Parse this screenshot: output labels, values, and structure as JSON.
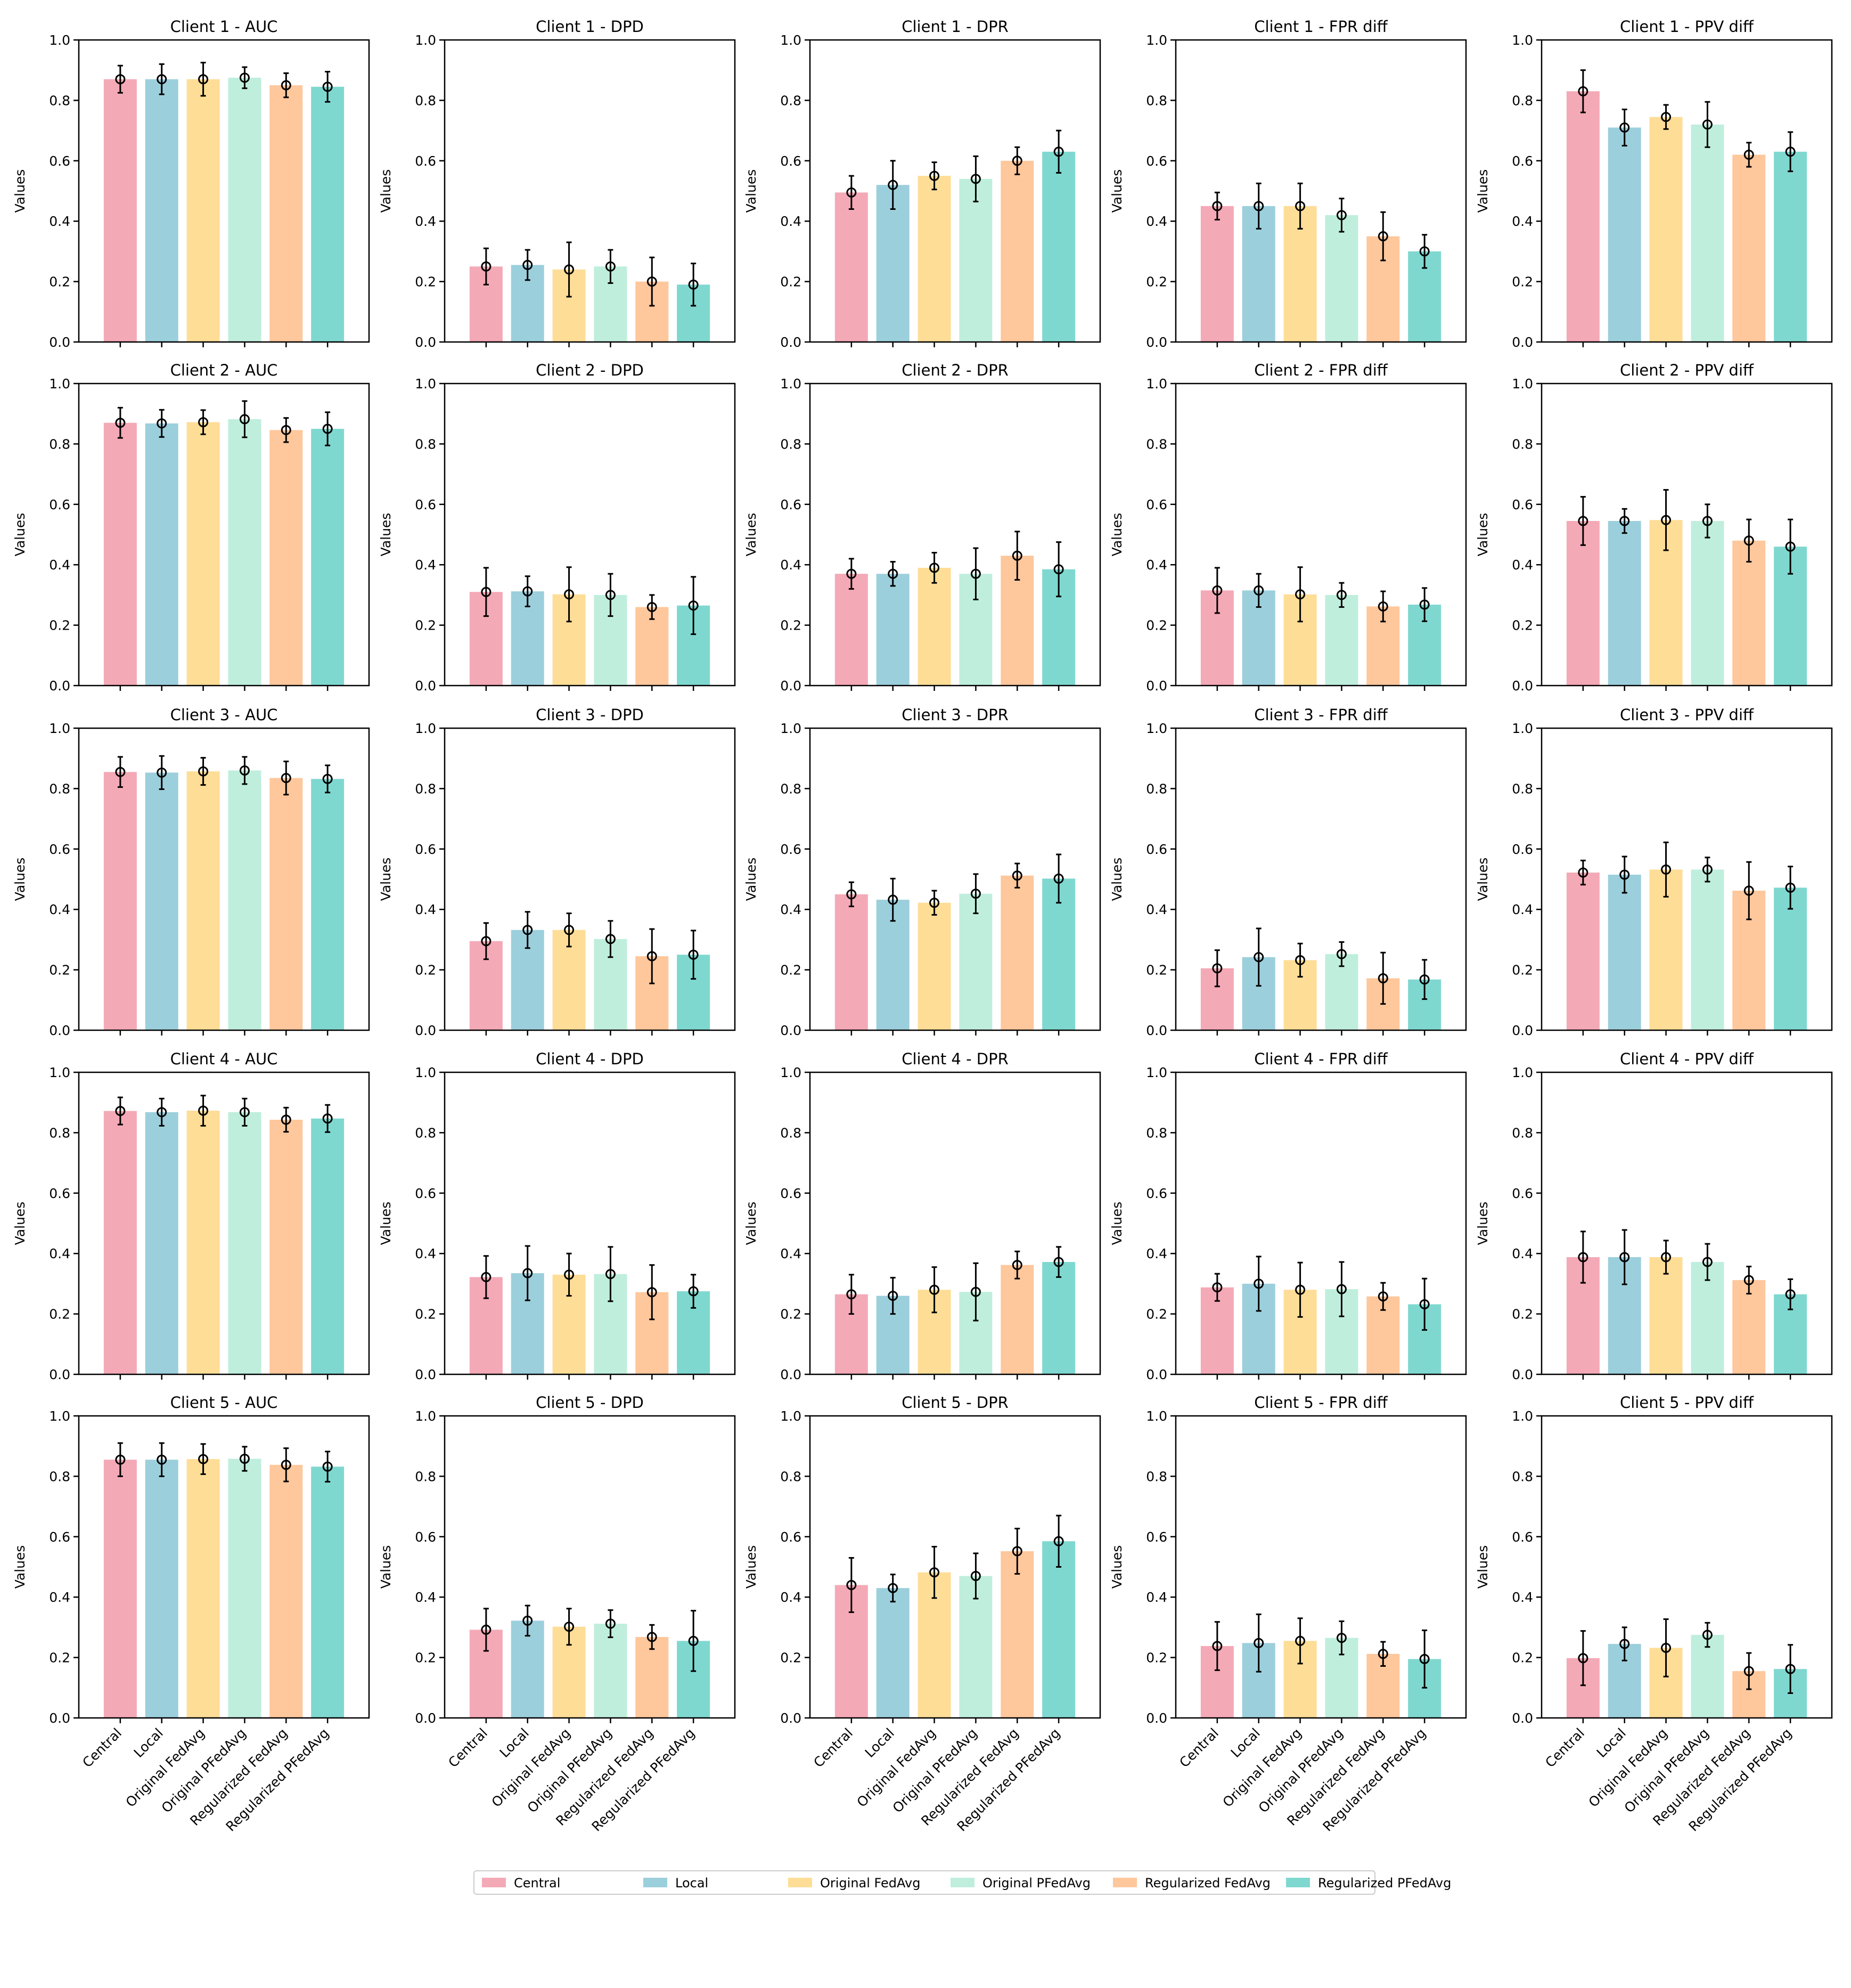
{
  "figure": {
    "y_axis_label": "Values",
    "ylim": [
      0,
      1
    ],
    "yticks": [
      "0.0",
      "0.2",
      "0.4",
      "0.6",
      "0.8",
      "1.0"
    ],
    "grid": false,
    "legend_position": "bottom-center"
  },
  "methods": [
    {
      "name": "Central",
      "color": "#f4a9b6"
    },
    {
      "name": "Local",
      "color": "#9ccfdc"
    },
    {
      "name": "Original FedAvg",
      "color": "#fedd97"
    },
    {
      "name": "Original PFedAvg",
      "color": "#bfeedd"
    },
    {
      "name": "Regularized FedAvg",
      "color": "#fec79c"
    },
    {
      "name": "Regularized PFedAvg",
      "color": "#7fd8d0"
    }
  ],
  "chart_data": [
    {
      "title": "Client 1 - AUC",
      "type": "bar",
      "ylabel": "Values",
      "ylim": [
        0,
        1
      ],
      "categories": [
        "Central",
        "Local",
        "Original FedAvg",
        "Original PFedAvg",
        "Regularized FedAvg",
        "Regularized PFedAvg"
      ],
      "values": [
        0.87,
        0.87,
        0.87,
        0.875,
        0.85,
        0.845
      ],
      "errors": [
        0.045,
        0.05,
        0.055,
        0.035,
        0.04,
        0.05
      ]
    },
    {
      "title": "Client 1 - DPD",
      "type": "bar",
      "ylabel": "Values",
      "ylim": [
        0,
        1
      ],
      "categories": [
        "Central",
        "Local",
        "Original FedAvg",
        "Original PFedAvg",
        "Regularized FedAvg",
        "Regularized PFedAvg"
      ],
      "values": [
        0.25,
        0.255,
        0.24,
        0.25,
        0.2,
        0.19
      ],
      "errors": [
        0.06,
        0.05,
        0.09,
        0.055,
        0.08,
        0.07
      ]
    },
    {
      "title": "Client 1 - DPR",
      "type": "bar",
      "ylabel": "Values",
      "ylim": [
        0,
        1
      ],
      "categories": [
        "Central",
        "Local",
        "Original FedAvg",
        "Original PFedAvg",
        "Regularized FedAvg",
        "Regularized PFedAvg"
      ],
      "values": [
        0.495,
        0.52,
        0.55,
        0.54,
        0.6,
        0.63
      ],
      "errors": [
        0.055,
        0.08,
        0.045,
        0.075,
        0.045,
        0.07
      ]
    },
    {
      "title": "Client 1 - FPR diff",
      "type": "bar",
      "ylabel": "Values",
      "ylim": [
        0,
        1
      ],
      "categories": [
        "Central",
        "Local",
        "Original FedAvg",
        "Original PFedAvg",
        "Regularized FedAvg",
        "Regularized PFedAvg"
      ],
      "values": [
        0.45,
        0.45,
        0.45,
        0.42,
        0.35,
        0.3
      ],
      "errors": [
        0.045,
        0.075,
        0.075,
        0.055,
        0.08,
        0.055
      ]
    },
    {
      "title": "Client 1 - PPV diff",
      "type": "bar",
      "ylabel": "Values",
      "ylim": [
        0,
        1
      ],
      "categories": [
        "Central",
        "Local",
        "Original FedAvg",
        "Original PFedAvg",
        "Regularized FedAvg",
        "Regularized PFedAvg"
      ],
      "values": [
        0.83,
        0.71,
        0.745,
        0.72,
        0.62,
        0.63
      ],
      "errors": [
        0.07,
        0.06,
        0.04,
        0.075,
        0.04,
        0.065
      ]
    },
    {
      "title": "Client 2 - AUC",
      "type": "bar",
      "ylabel": "Values",
      "ylim": [
        0,
        1
      ],
      "categories": [
        "Central",
        "Local",
        "Original FedAvg",
        "Original PFedAvg",
        "Regularized FedAvg",
        "Regularized PFedAvg"
      ],
      "values": [
        0.87,
        0.868,
        0.872,
        0.882,
        0.846,
        0.85
      ],
      "errors": [
        0.05,
        0.045,
        0.04,
        0.06,
        0.04,
        0.055
      ]
    },
    {
      "title": "Client 2 - DPD",
      "type": "bar",
      "ylabel": "Values",
      "ylim": [
        0,
        1
      ],
      "categories": [
        "Central",
        "Local",
        "Original FedAvg",
        "Original PFedAvg",
        "Regularized FedAvg",
        "Regularized PFedAvg"
      ],
      "values": [
        0.31,
        0.312,
        0.302,
        0.3,
        0.26,
        0.265
      ],
      "errors": [
        0.08,
        0.05,
        0.09,
        0.07,
        0.04,
        0.095
      ]
    },
    {
      "title": "Client 2 - DPR",
      "type": "bar",
      "ylabel": "Values",
      "ylim": [
        0,
        1
      ],
      "categories": [
        "Central",
        "Local",
        "Original FedAvg",
        "Original PFedAvg",
        "Regularized FedAvg",
        "Regularized PFedAvg"
      ],
      "values": [
        0.37,
        0.37,
        0.39,
        0.37,
        0.43,
        0.385
      ],
      "errors": [
        0.05,
        0.04,
        0.05,
        0.085,
        0.08,
        0.09
      ]
    },
    {
      "title": "Client 2 - FPR diff",
      "type": "bar",
      "ylabel": "Values",
      "ylim": [
        0,
        1
      ],
      "categories": [
        "Central",
        "Local",
        "Original FedAvg",
        "Original PFedAvg",
        "Regularized FedAvg",
        "Regularized PFedAvg"
      ],
      "values": [
        0.315,
        0.315,
        0.302,
        0.3,
        0.262,
        0.268
      ],
      "errors": [
        0.075,
        0.055,
        0.09,
        0.04,
        0.05,
        0.055
      ]
    },
    {
      "title": "Client 2 - PPV diff",
      "type": "bar",
      "ylabel": "Values",
      "ylim": [
        0,
        1
      ],
      "categories": [
        "Central",
        "Local",
        "Original FedAvg",
        "Original PFedAvg",
        "Regularized FedAvg",
        "Regularized PFedAvg"
      ],
      "values": [
        0.545,
        0.545,
        0.548,
        0.545,
        0.48,
        0.46
      ],
      "errors": [
        0.08,
        0.04,
        0.1,
        0.055,
        0.07,
        0.09
      ]
    },
    {
      "title": "Client 3 - AUC",
      "type": "bar",
      "ylabel": "Values",
      "ylim": [
        0,
        1
      ],
      "categories": [
        "Central",
        "Local",
        "Original FedAvg",
        "Original PFedAvg",
        "Regularized FedAvg",
        "Regularized PFedAvg"
      ],
      "values": [
        0.855,
        0.853,
        0.857,
        0.86,
        0.835,
        0.832
      ],
      "errors": [
        0.05,
        0.055,
        0.045,
        0.045,
        0.055,
        0.045
      ]
    },
    {
      "title": "Client 3 - DPD",
      "type": "bar",
      "ylabel": "Values",
      "ylim": [
        0,
        1
      ],
      "categories": [
        "Central",
        "Local",
        "Original FedAvg",
        "Original PFedAvg",
        "Regularized FedAvg",
        "Regularized PFedAvg"
      ],
      "values": [
        0.295,
        0.332,
        0.332,
        0.302,
        0.245,
        0.25
      ],
      "errors": [
        0.06,
        0.06,
        0.055,
        0.06,
        0.09,
        0.08
      ]
    },
    {
      "title": "Client 3 - DPR",
      "type": "bar",
      "ylabel": "Values",
      "ylim": [
        0,
        1
      ],
      "categories": [
        "Central",
        "Local",
        "Original FedAvg",
        "Original PFedAvg",
        "Regularized FedAvg",
        "Regularized PFedAvg"
      ],
      "values": [
        0.45,
        0.432,
        0.422,
        0.452,
        0.512,
        0.502
      ],
      "errors": [
        0.04,
        0.07,
        0.04,
        0.065,
        0.04,
        0.08
      ]
    },
    {
      "title": "Client 3 - FPR diff",
      "type": "bar",
      "ylabel": "Values",
      "ylim": [
        0,
        1
      ],
      "categories": [
        "Central",
        "Local",
        "Original FedAvg",
        "Original PFedAvg",
        "Regularized FedAvg",
        "Regularized PFedAvg"
      ],
      "values": [
        0.205,
        0.242,
        0.232,
        0.252,
        0.172,
        0.168
      ],
      "errors": [
        0.06,
        0.095,
        0.055,
        0.04,
        0.085,
        0.065
      ]
    },
    {
      "title": "Client 3 - PPV diff",
      "type": "bar",
      "ylabel": "Values",
      "ylim": [
        0,
        1
      ],
      "categories": [
        "Central",
        "Local",
        "Original FedAvg",
        "Original PFedAvg",
        "Regularized FedAvg",
        "Regularized PFedAvg"
      ],
      "values": [
        0.522,
        0.515,
        0.532,
        0.532,
        0.462,
        0.472
      ],
      "errors": [
        0.04,
        0.06,
        0.09,
        0.04,
        0.095,
        0.07
      ]
    },
    {
      "title": "Client 4 - AUC",
      "type": "bar",
      "ylabel": "Values",
      "ylim": [
        0,
        1
      ],
      "categories": [
        "Central",
        "Local",
        "Original FedAvg",
        "Original PFedAvg",
        "Regularized FedAvg",
        "Regularized PFedAvg"
      ],
      "values": [
        0.872,
        0.868,
        0.873,
        0.868,
        0.843,
        0.847
      ],
      "errors": [
        0.045,
        0.045,
        0.05,
        0.045,
        0.04,
        0.045
      ]
    },
    {
      "title": "Client 4 - DPD",
      "type": "bar",
      "ylabel": "Values",
      "ylim": [
        0,
        1
      ],
      "categories": [
        "Central",
        "Local",
        "Original FedAvg",
        "Original PFedAvg",
        "Regularized FedAvg",
        "Regularized PFedAvg"
      ],
      "values": [
        0.322,
        0.335,
        0.33,
        0.332,
        0.272,
        0.275
      ],
      "errors": [
        0.07,
        0.09,
        0.07,
        0.09,
        0.09,
        0.055
      ]
    },
    {
      "title": "Client 4 - DPR",
      "type": "bar",
      "ylabel": "Values",
      "ylim": [
        0,
        1
      ],
      "categories": [
        "Central",
        "Local",
        "Original FedAvg",
        "Original PFedAvg",
        "Regularized FedAvg",
        "Regularized PFedAvg"
      ],
      "values": [
        0.265,
        0.26,
        0.28,
        0.273,
        0.362,
        0.372
      ],
      "errors": [
        0.065,
        0.06,
        0.075,
        0.095,
        0.045,
        0.05
      ]
    },
    {
      "title": "Client 4 - FPR diff",
      "type": "bar",
      "ylabel": "Values",
      "ylim": [
        0,
        1
      ],
      "categories": [
        "Central",
        "Local",
        "Original FedAvg",
        "Original PFedAvg",
        "Regularized FedAvg",
        "Regularized PFedAvg"
      ],
      "values": [
        0.288,
        0.3,
        0.28,
        0.282,
        0.258,
        0.232
      ],
      "errors": [
        0.045,
        0.09,
        0.09,
        0.09,
        0.045,
        0.085
      ]
    },
    {
      "title": "Client 4 - PPV diff",
      "type": "bar",
      "ylabel": "Values",
      "ylim": [
        0,
        1
      ],
      "categories": [
        "Central",
        "Local",
        "Original FedAvg",
        "Original PFedAvg",
        "Regularized FedAvg",
        "Regularized PFedAvg"
      ],
      "values": [
        0.388,
        0.388,
        0.388,
        0.372,
        0.312,
        0.265
      ],
      "errors": [
        0.085,
        0.09,
        0.055,
        0.06,
        0.045,
        0.05
      ]
    },
    {
      "title": "Client 5 - AUC",
      "type": "bar",
      "ylabel": "Values",
      "ylim": [
        0,
        1
      ],
      "categories": [
        "Central",
        "Local",
        "Original FedAvg",
        "Original PFedAvg",
        "Regularized FedAvg",
        "Regularized PFedAvg"
      ],
      "values": [
        0.855,
        0.855,
        0.857,
        0.858,
        0.838,
        0.832
      ],
      "errors": [
        0.055,
        0.055,
        0.05,
        0.04,
        0.055,
        0.05
      ]
    },
    {
      "title": "Client 5 - DPD",
      "type": "bar",
      "ylabel": "Values",
      "ylim": [
        0,
        1
      ],
      "categories": [
        "Central",
        "Local",
        "Original FedAvg",
        "Original PFedAvg",
        "Regularized FedAvg",
        "Regularized PFedAvg"
      ],
      "values": [
        0.292,
        0.322,
        0.302,
        0.312,
        0.268,
        0.255
      ],
      "errors": [
        0.07,
        0.05,
        0.06,
        0.045,
        0.04,
        0.1
      ]
    },
    {
      "title": "Client 5 - DPR",
      "type": "bar",
      "ylabel": "Values",
      "ylim": [
        0,
        1
      ],
      "categories": [
        "Central",
        "Local",
        "Original FedAvg",
        "Original PFedAvg",
        "Regularized FedAvg",
        "Regularized PFedAvg"
      ],
      "values": [
        0.44,
        0.43,
        0.482,
        0.47,
        0.552,
        0.585
      ],
      "errors": [
        0.09,
        0.045,
        0.085,
        0.075,
        0.075,
        0.085
      ]
    },
    {
      "title": "Client 5 - FPR diff",
      "type": "bar",
      "ylabel": "Values",
      "ylim": [
        0,
        1
      ],
      "categories": [
        "Central",
        "Local",
        "Original FedAvg",
        "Original PFedAvg",
        "Regularized FedAvg",
        "Regularized PFedAvg"
      ],
      "values": [
        0.238,
        0.248,
        0.255,
        0.265,
        0.212,
        0.195
      ],
      "errors": [
        0.08,
        0.095,
        0.075,
        0.055,
        0.04,
        0.095
      ]
    },
    {
      "title": "Client 5 - PPV diff",
      "type": "bar",
      "ylabel": "Values",
      "ylim": [
        0,
        1
      ],
      "categories": [
        "Central",
        "Local",
        "Original FedAvg",
        "Original PFedAvg",
        "Regularized FedAvg",
        "Regularized PFedAvg"
      ],
      "values": [
        0.198,
        0.245,
        0.232,
        0.275,
        0.155,
        0.162
      ],
      "errors": [
        0.09,
        0.055,
        0.095,
        0.04,
        0.06,
        0.08
      ]
    }
  ]
}
